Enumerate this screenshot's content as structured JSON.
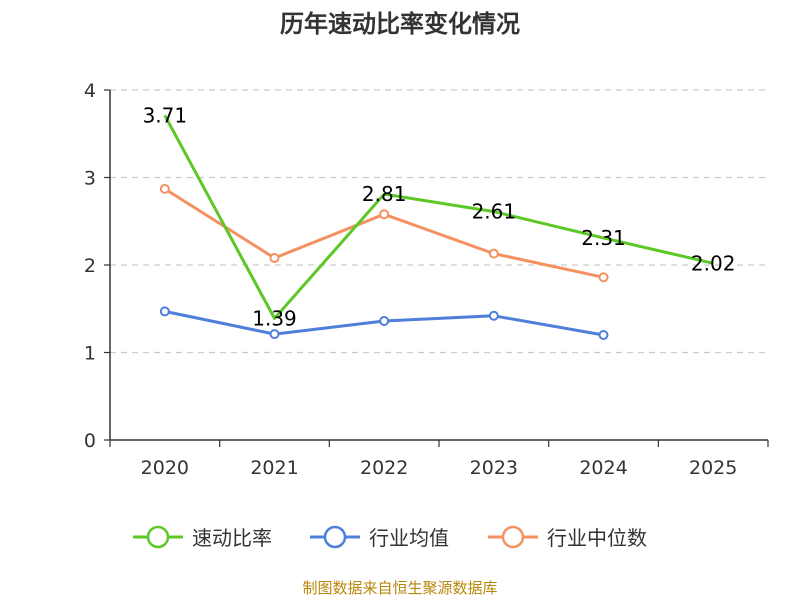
{
  "chart_data": {
    "type": "line",
    "title": "历年速动比率变化情况",
    "categories": [
      "2020",
      "2021",
      "2022",
      "2023",
      "2024",
      "2025"
    ],
    "ylim": [
      0,
      4
    ],
    "yticks": [
      0,
      1,
      2,
      3,
      4
    ],
    "grid": true,
    "legend_position": "bottom",
    "series": [
      {
        "name": "速动比率",
        "color": "#5cc726",
        "values": [
          3.71,
          1.39,
          2.81,
          2.61,
          2.31,
          2.02
        ],
        "labels": [
          "3.71",
          "1.39",
          "2.81",
          "2.61",
          "2.31",
          "2.02"
        ]
      },
      {
        "name": "行业均值",
        "color": "#4e7fda",
        "values": [
          1.47,
          1.21,
          1.36,
          1.42,
          1.2,
          null
        ]
      },
      {
        "name": "行业中位数",
        "color": "#f59160",
        "values": [
          2.87,
          2.08,
          2.58,
          2.13,
          1.86,
          null
        ]
      }
    ],
    "source_text": "制图数据来自恒生聚源数据库"
  }
}
